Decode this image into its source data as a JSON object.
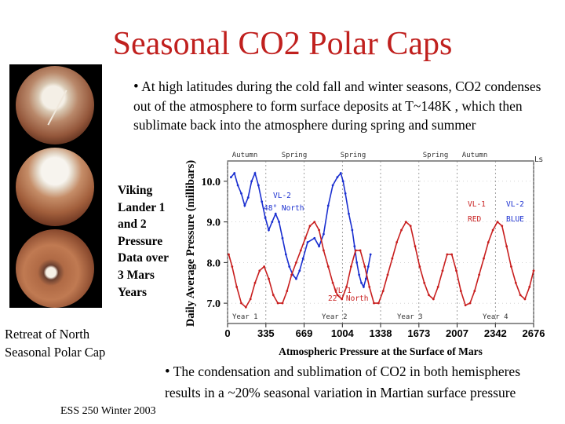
{
  "slide": {
    "title": "Seasonal CO2 Polar Caps",
    "bullet1": "At high latitudes during the cold fall and winter seasons, CO2 condenses out of the atmosphere to form surface deposits at T~148K , which then sublimate back into the atmosphere during spring and summer",
    "bullet2": "The condensation and sublimation of CO2 in both hemispheres results in a ~20% seasonal variation in Martian surface pressure",
    "viking_caption": [
      "Viking",
      "Lander 1",
      "and 2",
      "Pressure",
      "Data over",
      "3 Mars",
      "Years"
    ],
    "retreat_caption": [
      "Retreat of North",
      "Seasonal Polar Cap"
    ],
    "footer": "ESS 250 Winter 2003",
    "bullet_glyph": "•",
    "mars_images": [
      "mars-cap-large",
      "mars-cap-medium",
      "mars-cap-small"
    ]
  },
  "chart_data": {
    "type": "line",
    "xlabel": "Atmospheric Pressure at the Surface of Mars",
    "ylabel": "Daily Average Pressure (millibars)",
    "xlim": [
      0,
      2676
    ],
    "ylim": [
      6.5,
      10.5
    ],
    "x_ticks": [
      0,
      335,
      669,
      1004,
      1338,
      1673,
      2007,
      2342,
      2676
    ],
    "x_tick_labels": [
      "0",
      "335",
      "669",
      "1004",
      "1338",
      "1673",
      "2007",
      "2342",
      "2676"
    ],
    "y_ticks": [
      7.0,
      8.0,
      9.0,
      10.0
    ],
    "y_tick_labels": [
      "7.0",
      "8.0",
      "9.0",
      "10.0"
    ],
    "season_labels": [
      "Autumn",
      "Spring",
      "Spring",
      "Spring",
      "Autumn"
    ],
    "ls_label": "Ls",
    "year_labels": [
      "Year 1",
      "Year 2",
      "Year 3",
      "Year 4"
    ],
    "annotations": [
      "VL-2",
      "48° North",
      "VL-1",
      "22° North",
      "VL-1",
      "RED",
      "VL-2",
      "BLUE"
    ],
    "grid": true,
    "series": [
      {
        "name": "VL-2",
        "color": "#1a2fd0",
        "x": [
          30,
          60,
          90,
          120,
          150,
          180,
          210,
          240,
          270,
          300,
          330,
          360,
          390,
          420,
          450,
          480,
          510,
          540,
          570,
          600,
          630,
          660,
          700,
          760,
          800,
          840,
          880,
          920,
          960,
          990,
          1010,
          1030,
          1060,
          1090,
          1110,
          1130,
          1150,
          1170,
          1190,
          1210,
          1230,
          1250
        ],
        "y": [
          10.1,
          10.2,
          9.9,
          9.7,
          9.4,
          9.6,
          10.0,
          10.2,
          9.9,
          9.5,
          9.1,
          8.8,
          9.0,
          9.2,
          9.0,
          8.6,
          8.2,
          7.9,
          7.7,
          7.6,
          7.8,
          8.1,
          8.5,
          8.6,
          8.4,
          8.7,
          9.4,
          9.9,
          10.1,
          10.2,
          10.0,
          9.7,
          9.2,
          8.8,
          8.4,
          8.0,
          7.7,
          7.5,
          7.4,
          7.6,
          7.9,
          8.2
        ]
      },
      {
        "name": "VL-1",
        "color": "#c81e1e",
        "x": [
          10,
          40,
          80,
          120,
          160,
          200,
          240,
          280,
          320,
          360,
          400,
          440,
          480,
          520,
          560,
          600,
          640,
          680,
          720,
          760,
          800,
          840,
          880,
          920,
          960,
          1000,
          1040,
          1080,
          1120,
          1160,
          1200,
          1240,
          1280,
          1320,
          1360,
          1400,
          1440,
          1480,
          1520,
          1560,
          1600,
          1640,
          1680,
          1720,
          1760,
          1800,
          1840,
          1880,
          1920,
          1960,
          2000,
          2040,
          2080,
          2120,
          2160,
          2200,
          2240,
          2280,
          2320,
          2360,
          2400,
          2440,
          2480,
          2520,
          2560,
          2600,
          2640,
          2676
        ],
        "y": [
          8.2,
          7.9,
          7.4,
          7.0,
          6.9,
          7.1,
          7.5,
          7.8,
          7.9,
          7.6,
          7.2,
          7.0,
          7.0,
          7.3,
          7.7,
          8.0,
          8.3,
          8.6,
          8.9,
          9.0,
          8.8,
          8.3,
          7.9,
          7.5,
          7.2,
          7.1,
          7.4,
          7.9,
          8.3,
          8.3,
          7.9,
          7.4,
          7.0,
          7.0,
          7.3,
          7.7,
          8.1,
          8.5,
          8.8,
          9.0,
          8.9,
          8.4,
          7.9,
          7.5,
          7.2,
          7.1,
          7.4,
          7.8,
          8.2,
          8.2,
          7.8,
          7.3,
          6.95,
          7.0,
          7.3,
          7.7,
          8.1,
          8.5,
          8.8,
          9.0,
          8.9,
          8.4,
          7.9,
          7.5,
          7.2,
          7.1,
          7.4,
          7.8
        ]
      }
    ]
  }
}
